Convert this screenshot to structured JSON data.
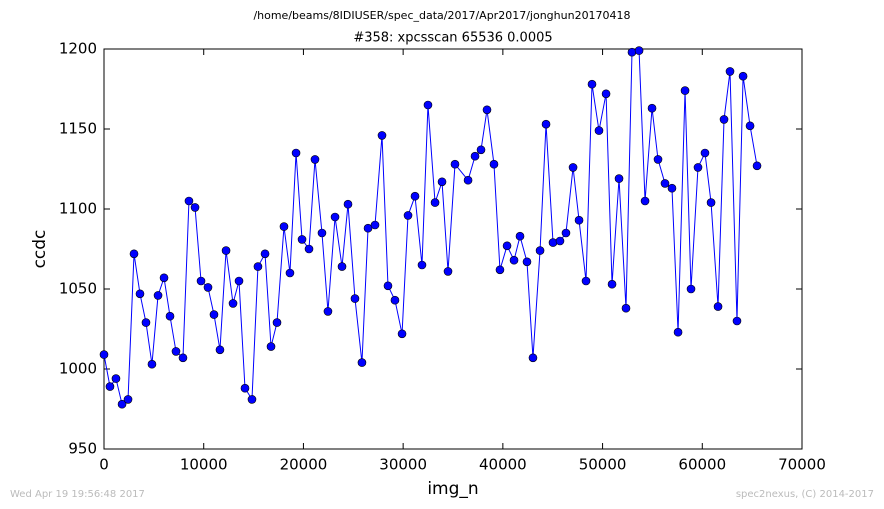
{
  "chart_data": {
    "type": "line",
    "suptitle": "/home/beams/8IDIUSER/spec_data/2017/Apr2017/jonghun20170418",
    "title": "#358: xpcsscan 65536 0.0005",
    "xlabel": "img_n",
    "ylabel": "ccdc",
    "footer_left": "Wed Apr 19 19:56:48 2017",
    "footer_right": "spec2nexus, (C) 2014-2017",
    "color": "#0000ff",
    "x": [
      0,
      600,
      1200,
      1810,
      2410,
      3010,
      3610,
      4210,
      4810,
      5420,
      6020,
      6620,
      7220,
      7920,
      8520,
      9130,
      9730,
      10430,
      11030,
      11630,
      12240,
      12940,
      13540,
      14140,
      14840,
      15440,
      16150,
      16750,
      17350,
      18050,
      18650,
      19260,
      19860,
      20560,
      21160,
      21860,
      22460,
      23170,
      23870,
      24470,
      25170,
      25870,
      26480,
      27180,
      27880,
      28480,
      29180,
      29890,
      30490,
      31190,
      31890,
      32490,
      33200,
      33900,
      34500,
      35200,
      36510,
      37210,
      37810,
      38410,
      39110,
      39710,
      40420,
      41120,
      41720,
      42420,
      43020,
      43730,
      44330,
      45030,
      45730,
      46330,
      47040,
      47640,
      48340,
      48940,
      49640,
      50350,
      50950,
      51650,
      52350,
      52950,
      53660,
      54260,
      54960,
      55560,
      56260,
      56960,
      57570,
      58270,
      58870,
      59570,
      60270,
      60880,
      61580,
      62180,
      62780,
      63480,
      64090,
      64790,
      65490
    ],
    "values": [
      1009,
      989,
      994,
      978,
      981,
      1072,
      1047,
      1029,
      1003,
      1046,
      1057,
      1033,
      1011,
      1007,
      1105,
      1101,
      1055,
      1051,
      1034,
      1012,
      1074,
      1041,
      1055,
      988,
      981,
      1064,
      1072,
      1014,
      1029,
      1089,
      1060,
      1135,
      1081,
      1075,
      1131,
      1085,
      1036,
      1095,
      1064,
      1103,
      1044,
      1004,
      1088,
      1090,
      1146,
      1052,
      1043,
      1022,
      1096,
      1108,
      1065,
      1165,
      1104,
      1117,
      1061,
      1128,
      1118,
      1133,
      1137,
      1162,
      1128,
      1062,
      1077,
      1068,
      1083,
      1067,
      1007,
      1074,
      1153,
      1079,
      1080,
      1085,
      1126,
      1093,
      1055,
      1178,
      1149,
      1172,
      1053,
      1119,
      1038,
      1198,
      1199,
      1105,
      1163,
      1131,
      1116,
      1113,
      1023,
      1174,
      1050,
      1126,
      1135,
      1104,
      1039,
      1156,
      1186,
      1030,
      1183,
      1152,
      1127
    ],
    "xlim": [
      0,
      70000
    ],
    "ylim": [
      950,
      1200
    ],
    "xticks": [
      0,
      10000,
      20000,
      30000,
      40000,
      50000,
      60000,
      70000
    ],
    "yticks": [
      950,
      1000,
      1050,
      1100,
      1150,
      1200
    ]
  }
}
